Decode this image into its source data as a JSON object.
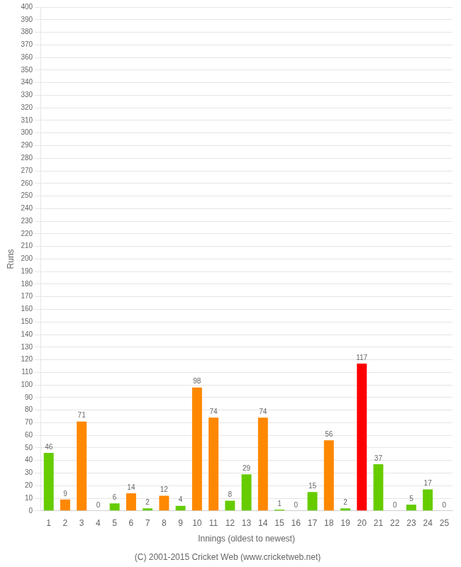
{
  "chart_data": {
    "type": "bar",
    "xlabel": "Innings (oldest to newest)",
    "ylabel": "Runs",
    "annotations": [
      "(C) 2001-2015 Cricket Web (www.cricketweb.net)"
    ],
    "categories": [
      "1",
      "2",
      "3",
      "4",
      "5",
      "6",
      "7",
      "8",
      "9",
      "10",
      "11",
      "12",
      "13",
      "14",
      "15",
      "16",
      "17",
      "18",
      "19",
      "20",
      "21",
      "22",
      "23",
      "24",
      "25"
    ],
    "values": [
      46,
      9,
      71,
      0,
      6,
      14,
      2,
      12,
      4,
      98,
      74,
      8,
      29,
      74,
      1,
      0,
      15,
      56,
      2,
      117,
      37,
      0,
      5,
      17,
      0
    ],
    "colors": [
      "#66cc00",
      "#ff8800",
      "#ff8800",
      "#66cc00",
      "#66cc00",
      "#ff8800",
      "#66cc00",
      "#ff8800",
      "#66cc00",
      "#ff8800",
      "#ff8800",
      "#66cc00",
      "#66cc00",
      "#ff8800",
      "#66cc00",
      "#66cc00",
      "#66cc00",
      "#ff8800",
      "#66cc00",
      "#ff0000",
      "#66cc00",
      "#66cc00",
      "#66cc00",
      "#66cc00",
      "#66cc00"
    ],
    "ylim": [
      0,
      400
    ],
    "yticks": [
      0,
      10,
      20,
      30,
      40,
      50,
      60,
      70,
      80,
      90,
      100,
      110,
      120,
      130,
      140,
      150,
      160,
      170,
      180,
      190,
      200,
      210,
      220,
      230,
      240,
      250,
      260,
      270,
      280,
      290,
      300,
      310,
      320,
      330,
      340,
      350,
      360,
      370,
      380,
      390,
      400
    ],
    "grid": true,
    "data_labels": true
  }
}
